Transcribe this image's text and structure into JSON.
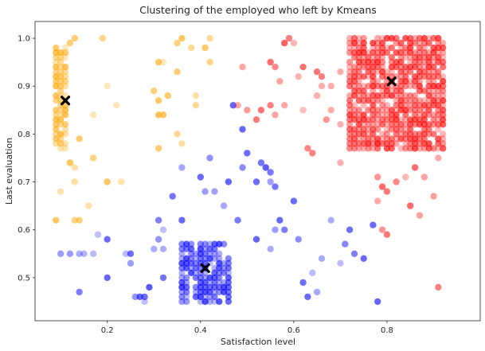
{
  "chart_data": {
    "type": "scatter",
    "title": "Clustering of the employed who left by Kmeans",
    "xlabel": "Satisfaction level",
    "ylabel": "Last evaluation",
    "xlim": [
      0.045,
      1.0
    ],
    "ylim": [
      0.41,
      1.035
    ],
    "xticks": [
      0.2,
      0.4,
      0.6,
      0.8
    ],
    "yticks": [
      0.5,
      0.6,
      0.7,
      0.8,
      0.9,
      1.0
    ],
    "grid": false,
    "legend": "none",
    "colors": {
      "orange": "#ffa500",
      "blue": "#0000ff",
      "red": "#ff0000",
      "centroid": "#000000"
    },
    "series": [
      {
        "name": "cluster-orange",
        "color": "#ffa500",
        "dense_block": {
          "x_range": [
            0.09,
            0.11
          ],
          "y_range": [
            0.77,
            0.98
          ]
        },
        "scatter": [
          [
            0.09,
            0.62
          ],
          [
            0.1,
            0.68
          ],
          [
            0.12,
            0.74
          ],
          [
            0.13,
            0.62
          ],
          [
            0.14,
            0.62
          ],
          [
            0.13,
            0.7
          ],
          [
            0.13,
            0.73
          ],
          [
            0.16,
            0.65
          ],
          [
            0.17,
            0.75
          ],
          [
            0.17,
            0.84
          ],
          [
            0.14,
            0.79
          ],
          [
            0.12,
            0.99
          ],
          [
            0.13,
            1.0
          ],
          [
            0.19,
            1.0
          ],
          [
            0.2,
            0.9
          ],
          [
            0.22,
            0.86
          ],
          [
            0.2,
            0.7
          ],
          [
            0.23,
            0.7
          ],
          [
            0.3,
            0.89
          ],
          [
            0.31,
            0.95
          ],
          [
            0.32,
            0.95
          ],
          [
            0.31,
            0.87
          ],
          [
            0.33,
            0.88
          ],
          [
            0.31,
            0.84
          ],
          [
            0.32,
            0.84
          ],
          [
            0.31,
            0.77
          ],
          [
            0.35,
            0.8
          ],
          [
            0.36,
            0.78
          ],
          [
            0.35,
            0.93
          ],
          [
            0.36,
            1.0
          ],
          [
            0.38,
            0.98
          ],
          [
            0.39,
            0.88
          ],
          [
            0.39,
            0.86
          ],
          [
            0.41,
            0.98
          ],
          [
            0.42,
            0.95
          ],
          [
            0.42,
            1.0
          ],
          [
            0.35,
            0.99
          ]
        ]
      },
      {
        "name": "cluster-blue",
        "color": "#0000ff",
        "dense_block": {
          "x_range": [
            0.36,
            0.46
          ],
          "y_range": [
            0.45,
            0.57
          ]
        },
        "scatter": [
          [
            0.1,
            0.55
          ],
          [
            0.12,
            0.55
          ],
          [
            0.14,
            0.55
          ],
          [
            0.14,
            0.47
          ],
          [
            0.15,
            0.55
          ],
          [
            0.17,
            0.55
          ],
          [
            0.18,
            0.59
          ],
          [
            0.2,
            0.58
          ],
          [
            0.2,
            0.5
          ],
          [
            0.24,
            0.55
          ],
          [
            0.25,
            0.55
          ],
          [
            0.25,
            0.53
          ],
          [
            0.26,
            0.46
          ],
          [
            0.27,
            0.46
          ],
          [
            0.28,
            0.46
          ],
          [
            0.28,
            0.45
          ],
          [
            0.29,
            0.48
          ],
          [
            0.3,
            0.56
          ],
          [
            0.31,
            0.62
          ],
          [
            0.31,
            0.58
          ],
          [
            0.32,
            0.6
          ],
          [
            0.32,
            0.56
          ],
          [
            0.32,
            0.5
          ],
          [
            0.34,
            0.67
          ],
          [
            0.36,
            0.73
          ],
          [
            0.36,
            0.62
          ],
          [
            0.4,
            0.71
          ],
          [
            0.41,
            0.68
          ],
          [
            0.42,
            0.75
          ],
          [
            0.43,
            0.68
          ],
          [
            0.45,
            0.65
          ],
          [
            0.46,
            0.7
          ],
          [
            0.47,
            0.86
          ],
          [
            0.48,
            0.62
          ],
          [
            0.49,
            0.73
          ],
          [
            0.49,
            0.81
          ],
          [
            0.5,
            0.76
          ],
          [
            0.52,
            0.7
          ],
          [
            0.53,
            0.74
          ],
          [
            0.54,
            0.73
          ],
          [
            0.55,
            0.72
          ],
          [
            0.55,
            0.7
          ],
          [
            0.56,
            0.69
          ],
          [
            0.56,
            0.6
          ],
          [
            0.52,
            0.58
          ],
          [
            0.55,
            0.56
          ],
          [
            0.57,
            0.62
          ],
          [
            0.58,
            0.6
          ],
          [
            0.6,
            0.66
          ],
          [
            0.61,
            0.58
          ],
          [
            0.62,
            0.49
          ],
          [
            0.63,
            0.46
          ],
          [
            0.64,
            0.51
          ],
          [
            0.65,
            0.47
          ],
          [
            0.68,
            0.62
          ],
          [
            0.7,
            0.53
          ],
          [
            0.71,
            0.57
          ],
          [
            0.72,
            0.6
          ],
          [
            0.73,
            0.55
          ],
          [
            0.75,
            0.54
          ],
          [
            0.78,
            0.45
          ],
          [
            0.77,
            0.61
          ],
          [
            0.66,
            0.54
          ]
        ]
      },
      {
        "name": "cluster-red",
        "color": "#ff0000",
        "dense_block": {
          "x_range": [
            0.72,
            0.92
          ],
          "y_range": [
            0.77,
            1.0
          ]
        },
        "scatter": [
          [
            0.48,
            0.86
          ],
          [
            0.49,
            0.94
          ],
          [
            0.5,
            0.85
          ],
          [
            0.52,
            0.83
          ],
          [
            0.53,
            0.85
          ],
          [
            0.55,
            0.86
          ],
          [
            0.56,
            0.84
          ],
          [
            0.57,
            0.91
          ],
          [
            0.58,
            0.86
          ],
          [
            0.59,
            1.0
          ],
          [
            0.6,
            0.99
          ],
          [
            0.61,
            0.92
          ],
          [
            0.62,
            0.85
          ],
          [
            0.63,
            0.77
          ],
          [
            0.64,
            0.76
          ],
          [
            0.65,
            0.88
          ],
          [
            0.66,
            0.92
          ],
          [
            0.67,
            0.83
          ],
          [
            0.68,
            0.9
          ],
          [
            0.7,
            0.82
          ],
          [
            0.7,
            0.74
          ],
          [
            0.55,
            0.95
          ],
          [
            0.56,
            0.94
          ],
          [
            0.58,
            0.99
          ],
          [
            0.62,
            0.94
          ],
          [
            0.65,
            0.93
          ],
          [
            0.66,
            0.9
          ],
          [
            0.68,
            0.85
          ],
          [
            0.7,
            0.93
          ],
          [
            0.78,
            0.78
          ],
          [
            0.78,
            0.71
          ],
          [
            0.79,
            0.69
          ],
          [
            0.78,
            0.66
          ],
          [
            0.79,
            0.6
          ],
          [
            0.8,
            0.59
          ],
          [
            0.82,
            0.7
          ],
          [
            0.84,
            0.71
          ],
          [
            0.85,
            0.65
          ],
          [
            0.87,
            0.63
          ],
          [
            0.88,
            0.71
          ],
          [
            0.9,
            0.67
          ],
          [
            0.91,
            0.75
          ],
          [
            0.91,
            0.48
          ],
          [
            0.8,
            0.68
          ],
          [
            0.86,
            0.73
          ]
        ]
      }
    ],
    "centroids": [
      {
        "name": "centroid-orange",
        "x": 0.11,
        "y": 0.87
      },
      {
        "name": "centroid-blue",
        "x": 0.41,
        "y": 0.52
      },
      {
        "name": "centroid-red",
        "x": 0.81,
        "y": 0.91
      }
    ]
  }
}
